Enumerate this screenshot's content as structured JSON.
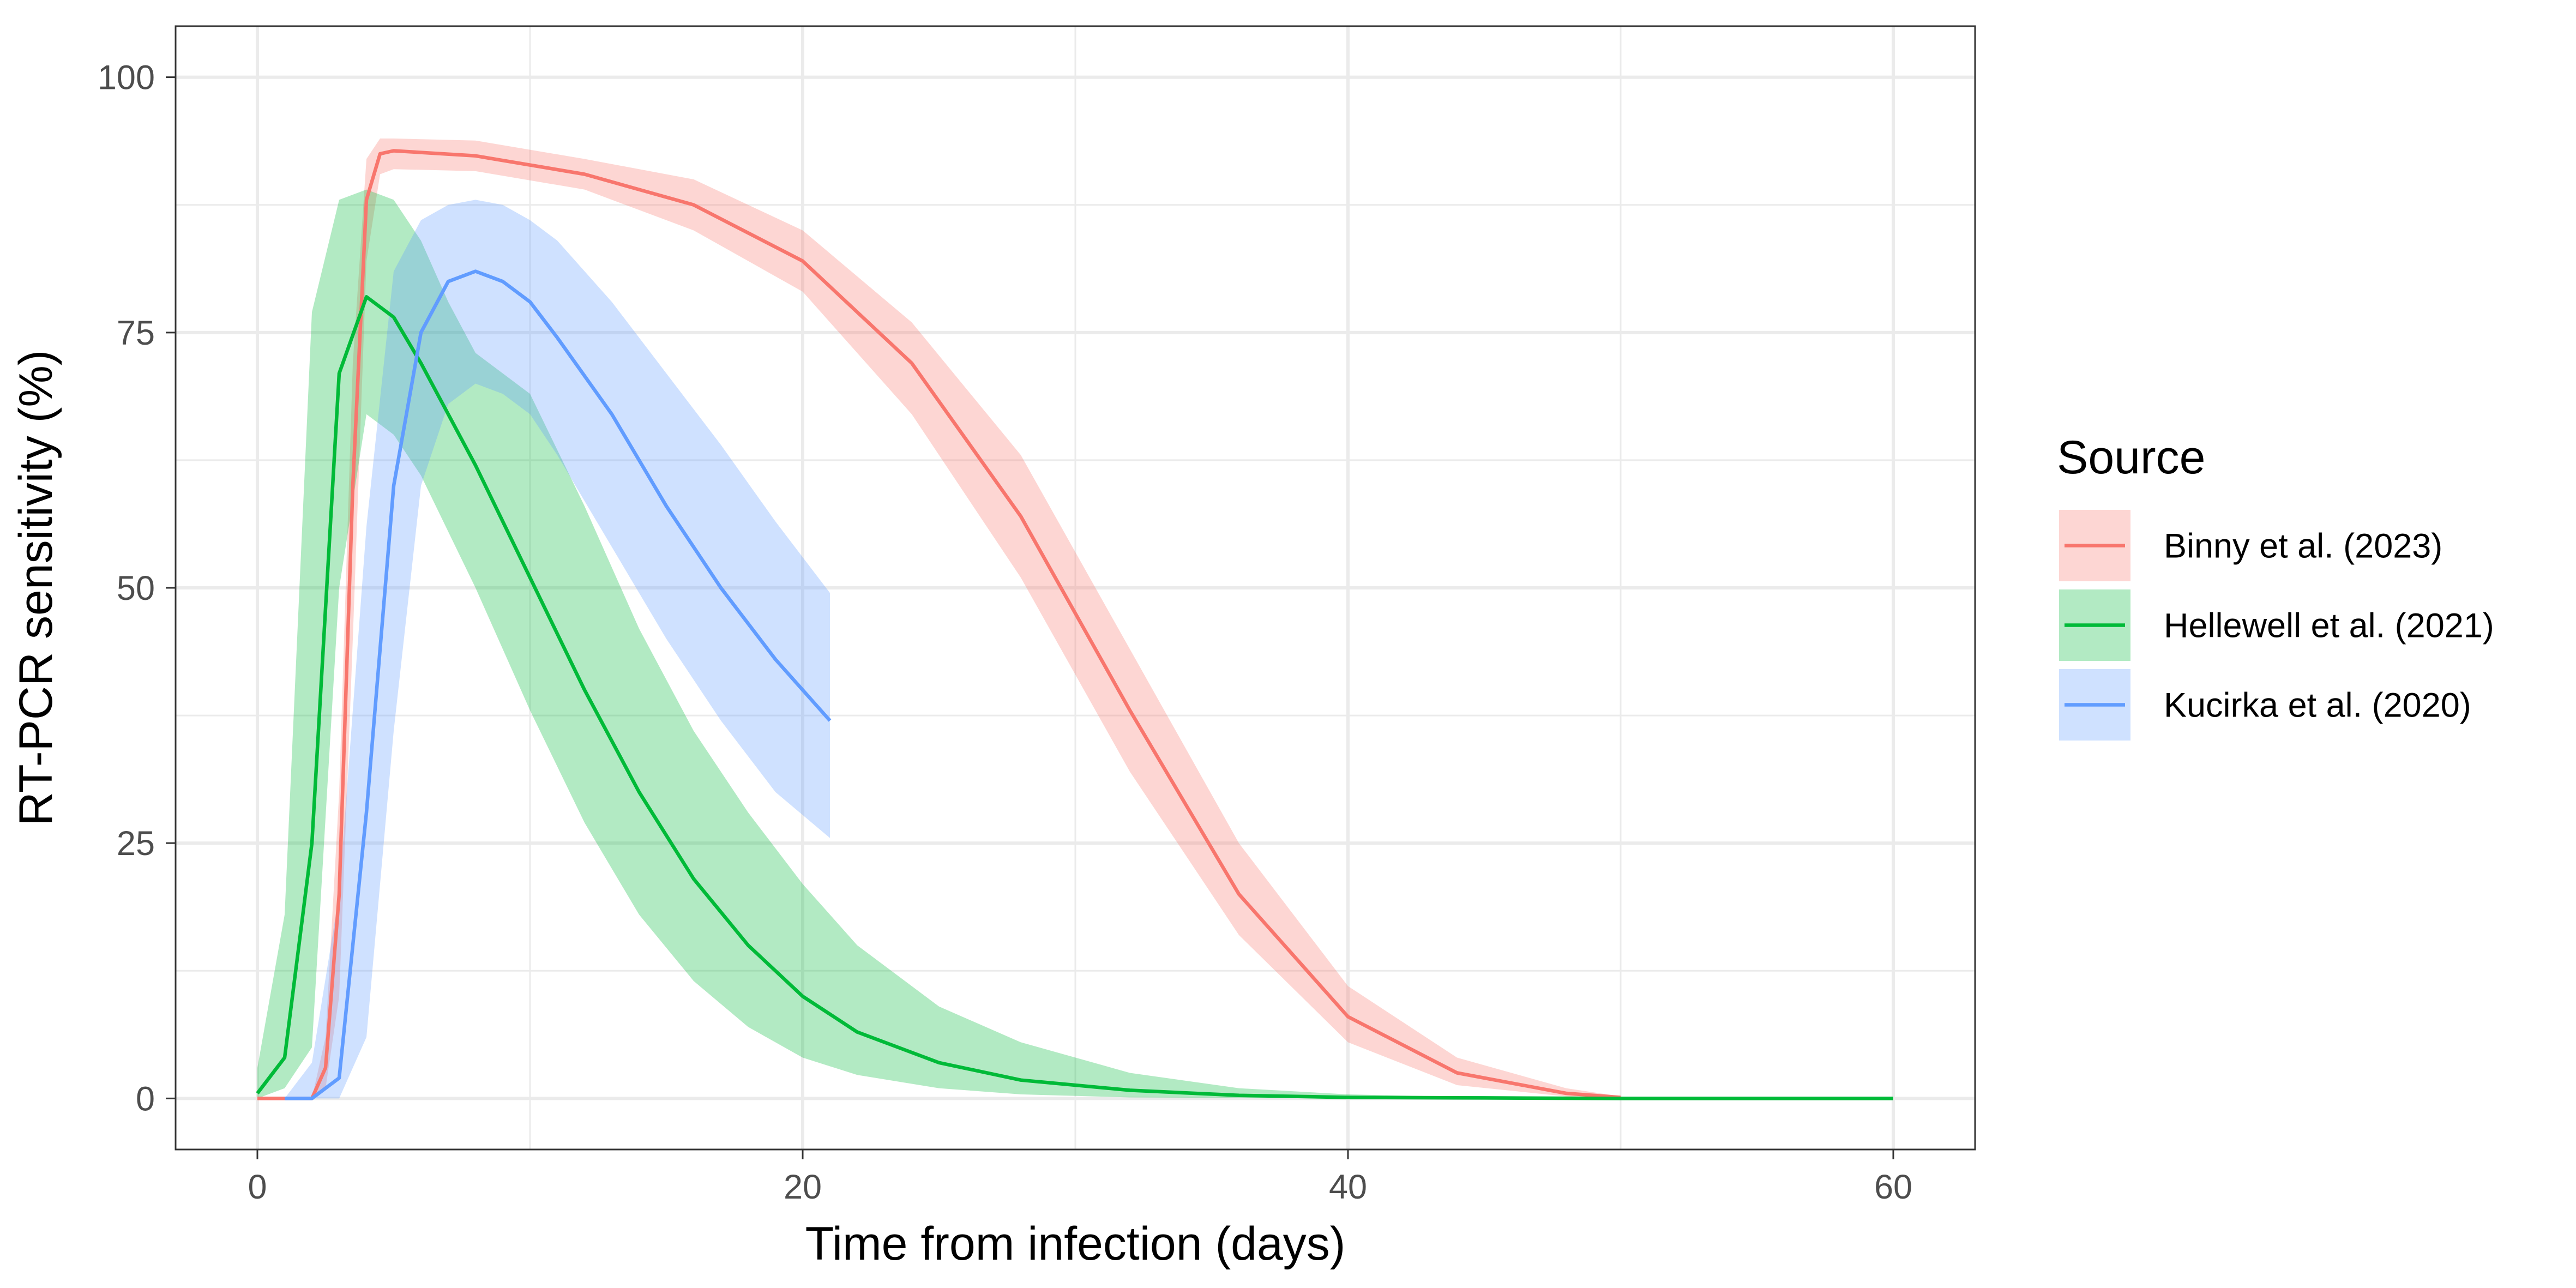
{
  "chart_data": {
    "type": "line",
    "xlabel": "Time from infection (days)",
    "ylabel": "RT-PCR sensitivity (%)",
    "xlim": [
      -3,
      63
    ],
    "ylim": [
      -5,
      105
    ],
    "x_ticks": [
      0,
      20,
      40,
      60
    ],
    "x_tick_labels": [
      "0",
      "20",
      "40",
      "60"
    ],
    "y_ticks": [
      0,
      25,
      50,
      75,
      100
    ],
    "y_tick_labels": [
      "0",
      "25",
      "50",
      "75",
      "100"
    ],
    "grid": true,
    "legend": {
      "title": "Source",
      "position": "right"
    },
    "series": [
      {
        "name": "Binny et al. (2023)",
        "color": "#F8766D",
        "x": [
          0,
          2,
          2.5,
          3,
          3.5,
          4,
          4.5,
          5,
          8,
          12,
          16,
          20,
          24,
          28,
          32,
          36,
          40,
          44,
          48,
          50
        ],
        "y": [
          0,
          0,
          3,
          20,
          60,
          88,
          92.5,
          92.8,
          92.3,
          90.5,
          87.5,
          82,
          72,
          57,
          38,
          20,
          8,
          2.5,
          0.5,
          0.1
        ],
        "lower": [
          0,
          0,
          1,
          10,
          45,
          82,
          90.5,
          91,
          90.8,
          89,
          85,
          79,
          67,
          51,
          32,
          16,
          5.5,
          1.3,
          0.2,
          0
        ],
        "upper": [
          0,
          0,
          6,
          30,
          72,
          92,
          94,
          94,
          93.8,
          92,
          90,
          85,
          76,
          63,
          44,
          25,
          11,
          4,
          1,
          0.2
        ]
      },
      {
        "name": "Hellewell et al. (2021)",
        "color": "#00BA38",
        "x": [
          0,
          1,
          2,
          3,
          4,
          5,
          6,
          7,
          8,
          9,
          10,
          12,
          14,
          16,
          18,
          20,
          22,
          25,
          28,
          32,
          36,
          40,
          45,
          50,
          55,
          60
        ],
        "y": [
          0.5,
          4,
          25,
          71,
          78.5,
          76.5,
          72,
          67,
          62,
          56.5,
          51,
          40,
          30,
          21.5,
          15,
          10,
          6.5,
          3.5,
          1.8,
          0.8,
          0.3,
          0.1,
          0.05,
          0,
          0,
          0
        ],
        "lower": [
          0,
          1,
          5,
          50,
          67,
          65,
          61,
          55.5,
          50,
          44,
          38,
          27,
          18,
          11.5,
          7,
          4,
          2.3,
          1,
          0.4,
          0.1,
          0.05,
          0,
          0,
          0,
          0,
          0
        ],
        "upper": [
          3,
          18,
          77,
          88,
          89,
          88,
          84,
          78,
          73,
          71,
          69,
          58,
          46,
          36,
          28,
          21,
          15,
          9,
          5.5,
          2.5,
          1,
          0.4,
          0.1,
          0,
          0,
          0
        ]
      },
      {
        "name": "Kucirka et al. (2020)",
        "color": "#619CFF",
        "x": [
          1,
          2,
          3,
          4,
          5,
          6,
          7,
          8,
          9,
          10,
          11,
          13,
          15,
          17,
          19,
          21
        ],
        "y": [
          0,
          0,
          2,
          28,
          60,
          75,
          80,
          81,
          80,
          78,
          74.5,
          67,
          58,
          50,
          43,
          37
        ],
        "lower": [
          0,
          0,
          0,
          6,
          36,
          60,
          68,
          70,
          69,
          67,
          63,
          54,
          45,
          37,
          30,
          25.5
        ],
        "upper": [
          0,
          3.5,
          20,
          56,
          81,
          86,
          87.5,
          88,
          87.5,
          86,
          84,
          78,
          71,
          64,
          56.5,
          49.5
        ]
      }
    ]
  }
}
